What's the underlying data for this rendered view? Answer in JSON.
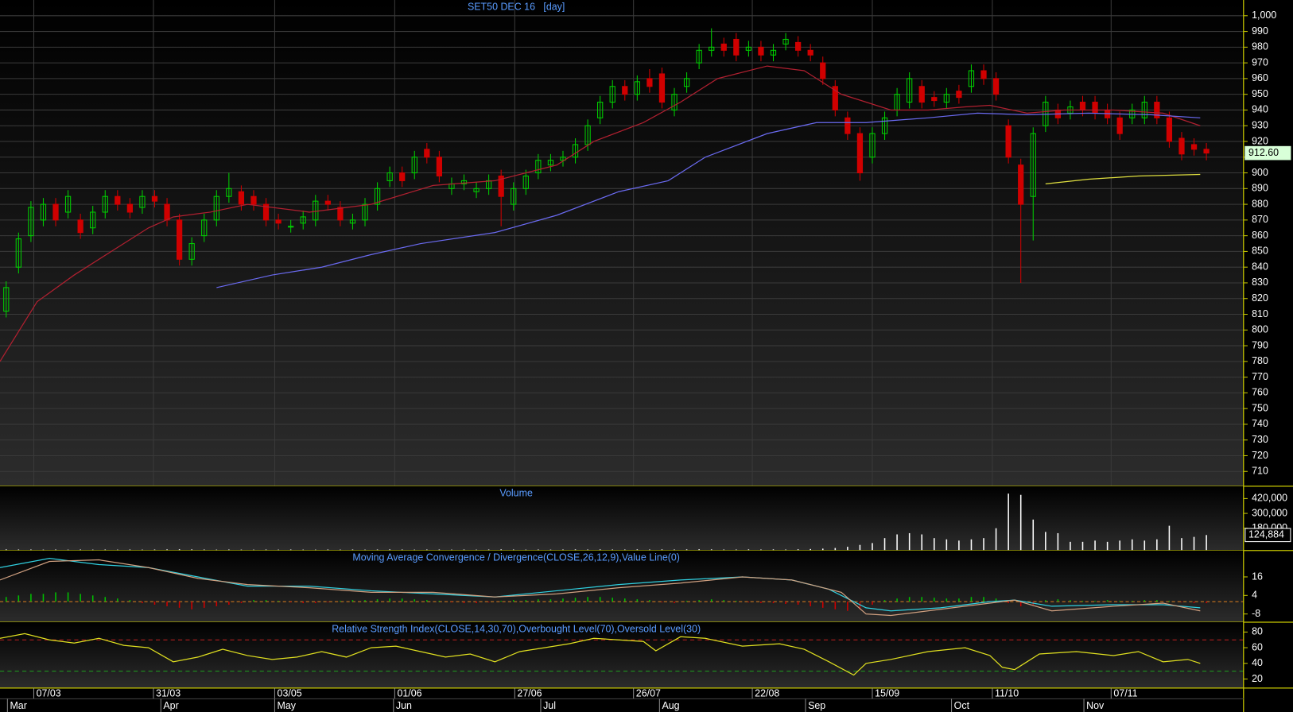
{
  "chart_data": [
    {
      "type": "candlestick",
      "title": "SET50 DEC 16   [day]",
      "open": [
        812,
        840,
        860,
        870,
        880,
        875,
        870,
        865,
        875,
        885,
        880,
        878,
        885,
        880,
        870,
        845,
        860,
        870,
        885,
        888,
        885,
        880,
        870,
        866,
        868,
        870,
        882,
        878,
        868,
        870,
        880,
        895,
        900,
        900,
        915,
        910,
        890,
        893,
        888,
        890,
        898,
        880,
        890,
        900,
        905,
        908,
        910,
        918,
        935,
        945,
        955,
        950,
        960,
        963,
        940,
        955,
        970,
        978,
        982,
        985,
        978,
        980,
        975,
        982,
        983,
        978,
        970,
        955,
        935,
        925,
        910,
        925,
        940,
        945,
        955,
        948,
        945,
        952,
        955,
        965,
        960,
        930,
        905,
        885,
        930,
        940,
        938,
        945,
        945,
        940,
        935,
        935,
        935,
        945,
        935,
        922,
        918,
        915
      ],
      "high": [
        831,
        862,
        882,
        884,
        884,
        889,
        874,
        879,
        889,
        889,
        884,
        889,
        889,
        884,
        874,
        859,
        874,
        889,
        900,
        892,
        889,
        884,
        874,
        870,
        876,
        886,
        886,
        882,
        874,
        884,
        894,
        904,
        904,
        914,
        919,
        914,
        897,
        899,
        894,
        899,
        902,
        894,
        902,
        912,
        912,
        914,
        922,
        934,
        949,
        959,
        959,
        962,
        966,
        967,
        954,
        964,
        982,
        992,
        986,
        989,
        984,
        984,
        982,
        989,
        987,
        982,
        974,
        959,
        939,
        929,
        929,
        939,
        954,
        964,
        959,
        952,
        954,
        956,
        969,
        969,
        964,
        934,
        909,
        929,
        949,
        944,
        946,
        949,
        949,
        944,
        939,
        944,
        949,
        949,
        939,
        926,
        922,
        919
      ],
      "low": [
        808,
        836,
        856,
        866,
        866,
        871,
        858,
        861,
        871,
        876,
        871,
        874,
        878,
        866,
        841,
        841,
        856,
        866,
        881,
        876,
        876,
        866,
        864,
        862,
        864,
        866,
        876,
        866,
        864,
        866,
        876,
        891,
        891,
        896,
        906,
        894,
        886,
        889,
        884,
        886,
        866,
        876,
        886,
        896,
        901,
        904,
        906,
        914,
        931,
        941,
        946,
        946,
        951,
        941,
        936,
        951,
        966,
        974,
        974,
        971,
        974,
        971,
        971,
        978,
        974,
        971,
        956,
        936,
        921,
        895,
        906,
        921,
        936,
        941,
        941,
        942,
        941,
        944,
        951,
        956,
        946,
        906,
        830,
        857,
        926,
        931,
        934,
        936,
        934,
        931,
        921,
        931,
        931,
        931,
        916,
        908,
        911,
        908
      ],
      "close": [
        827,
        858,
        878,
        880,
        870,
        885,
        862,
        875,
        885,
        880,
        875,
        885,
        882,
        870,
        845,
        855,
        870,
        885,
        890,
        880,
        880,
        870,
        868,
        866,
        872,
        882,
        880,
        870,
        870,
        880,
        890,
        900,
        895,
        910,
        910,
        898,
        893,
        895,
        890,
        895,
        885,
        890,
        898,
        908,
        908,
        910,
        918,
        930,
        945,
        955,
        950,
        958,
        955,
        945,
        950,
        960,
        978,
        980,
        978,
        975,
        980,
        975,
        978,
        985,
        978,
        975,
        960,
        940,
        925,
        900,
        925,
        935,
        950,
        960,
        945,
        946,
        950,
        948,
        965,
        960,
        950,
        910,
        880,
        925,
        945,
        935,
        942,
        940,
        938,
        935,
        925,
        940,
        945,
        935,
        920,
        912,
        915,
        912.6
      ],
      "up_color": "#00d000",
      "down_color": "#d00000",
      "lines": [
        {
          "color": "#b02030",
          "x": [
            0,
            3,
            6,
            9,
            12,
            14,
            17,
            20,
            25,
            30,
            35,
            40,
            45,
            48,
            52,
            55,
            58,
            62,
            65,
            68,
            70,
            72,
            75,
            78,
            80,
            83,
            86,
            90,
            94,
            97
          ],
          "values": [
            780,
            818,
            835,
            850,
            865,
            872,
            875,
            880,
            875,
            880,
            892,
            895,
            905,
            920,
            932,
            945,
            960,
            968,
            965,
            950,
            945,
            940,
            940,
            942,
            943,
            938,
            940,
            940,
            938,
            930
          ]
        },
        {
          "color": "#6a6af0",
          "x": [
            17.5,
            22,
            26,
            30,
            34,
            40,
            45,
            50,
            54,
            57,
            62,
            66,
            70,
            75,
            79,
            83,
            88,
            93,
            97
          ],
          "values": [
            827,
            835,
            840,
            848,
            855,
            862,
            873,
            888,
            895,
            910,
            925,
            932,
            932,
            935,
            938,
            937,
            938,
            937,
            935
          ]
        },
        {
          "color": "#e0e040",
          "x": [
            84.5,
            88,
            92,
            97
          ],
          "values": [
            893,
            896,
            898,
            899
          ]
        }
      ],
      "last_value": {
        "value": 912.6,
        "label": "912.60"
      },
      "xlim": [
        0,
        100.5
      ],
      "ylim": [
        700.6,
        1010
      ],
      "yticks": [
        {
          "value": 1000,
          "label": "1,000"
        },
        990,
        980,
        970,
        960,
        950,
        940,
        930,
        920,
        910,
        900,
        890,
        880,
        870,
        860,
        850,
        840,
        830,
        820,
        810,
        800,
        790,
        780,
        770,
        760,
        750,
        740,
        730,
        720,
        710
      ],
      "xticks": [
        {
          "value": 2.73,
          "label": "07/03"
        },
        {
          "value": 12.4,
          "label": "31/03"
        },
        {
          "value": 22.2,
          "label": "03/05"
        },
        {
          "value": 31.9,
          "label": "01/06"
        },
        {
          "value": 41.6,
          "label": "27/06"
        },
        {
          "value": 51.2,
          "label": "26/07"
        },
        {
          "value": 60.8,
          "label": "22/08"
        },
        {
          "value": 70.5,
          "label": "15/09"
        },
        {
          "value": 80.2,
          "label": "11/10"
        },
        {
          "value": 89.8,
          "label": "07/11"
        }
      ],
      "xticks2": [
        {
          "value": 0.6,
          "label": "Mar"
        },
        {
          "value": 13,
          "label": "Apr"
        },
        {
          "value": 22.2,
          "label": "May"
        },
        {
          "value": 31.8,
          "label": "Jun"
        },
        {
          "value": 43.7,
          "label": "Jul"
        },
        {
          "value": 53.3,
          "label": "Aug"
        },
        {
          "value": 65.1,
          "label": "Sep"
        },
        {
          "value": 76.9,
          "label": "Oct"
        },
        {
          "value": 87.6,
          "label": "Nov"
        }
      ],
      "grid": true
    },
    {
      "type": "bar",
      "title": "Volume",
      "color": "#ffffff",
      "values": [
        9000,
        8000,
        8000,
        7000,
        8000,
        7000,
        8000,
        7000,
        8000,
        7000,
        8000,
        7000,
        8000,
        9000,
        10000,
        9000,
        8000,
        7000,
        8000,
        7000,
        7000,
        8000,
        7000,
        8000,
        7000,
        7000,
        8000,
        7000,
        8000,
        7000,
        8000,
        9000,
        8000,
        7000,
        8000,
        8000,
        7000,
        8000,
        7000,
        8000,
        9000,
        8000,
        7000,
        8000,
        7000,
        8000,
        9000,
        8000,
        9000,
        8000,
        8000,
        9000,
        8000,
        9000,
        8000,
        9000,
        10000,
        9000,
        8000,
        8000,
        9000,
        8000,
        9000,
        8000,
        10000,
        12000,
        15000,
        20000,
        30000,
        45000,
        60000,
        100000,
        130000,
        140000,
        130000,
        100000,
        90000,
        80000,
        90000,
        100000,
        180000,
        460000,
        450000,
        250000,
        150000,
        140000,
        70000,
        70000,
        80000,
        70000,
        80000,
        90000,
        80000,
        90000,
        200000,
        100000,
        110000,
        124884
      ],
      "last_value": {
        "value": 124884,
        "label": "124,884"
      },
      "ylim": [
        0,
        520000
      ],
      "yticks": [
        {
          "value": 420000,
          "label": "420,000"
        },
        {
          "value": 300000,
          "label": "300,000"
        },
        {
          "value": 180000,
          "label": "180,000"
        }
      ]
    },
    {
      "type": "macd",
      "title": "Moving Average Convergence / Divergence(CLOSE,26,12,9),Value Line(0)",
      "histogram": [
        3,
        4,
        5,
        5,
        6,
        6,
        5,
        4,
        3,
        2,
        1,
        -1,
        -2,
        -3,
        -4,
        -5,
        -4,
        -3,
        -2,
        -1,
        1,
        1,
        0.5,
        -0.5,
        -1,
        -1,
        -0.5,
        0.5,
        1,
        1,
        1.5,
        2,
        2,
        1.5,
        1,
        0.5,
        -0.5,
        -1,
        -1,
        -0.5,
        0.5,
        1,
        1,
        1.5,
        1.5,
        2,
        2.5,
        3,
        3,
        2.5,
        2,
        1.5,
        1,
        -0.5,
        -1,
        0.5,
        1,
        1.5,
        1,
        0.5,
        -0.5,
        -1,
        -1,
        -1.5,
        -2,
        -3,
        -4,
        -5,
        -6,
        -5,
        -2,
        1,
        2,
        3,
        3,
        2.5,
        2,
        2,
        3,
        3,
        2,
        -1,
        -3,
        -2,
        1,
        1.5,
        1,
        0.5,
        0.5,
        1,
        0.5,
        0.5,
        1,
        1,
        0.5,
        -0.5,
        -1,
        -1
      ],
      "up_color": "#00c000",
      "down_color": "#d00000",
      "lines": [
        {
          "color": "#30d0e0",
          "x": [
            0,
            4,
            8,
            12,
            16,
            20,
            25,
            30,
            35,
            40,
            45,
            50,
            55,
            60,
            64,
            67,
            70,
            72,
            76,
            80,
            82,
            85,
            90,
            94,
            97
          ],
          "values": [
            22,
            28,
            24,
            22,
            16,
            10,
            10,
            7,
            5,
            3,
            7,
            11,
            14,
            16,
            14,
            8,
            -4,
            -6,
            -4,
            0,
            1,
            -3,
            -2,
            -2,
            -4
          ]
        },
        {
          "color": "#d0a080",
          "x": [
            0,
            4,
            8,
            12,
            16,
            20,
            25,
            30,
            35,
            40,
            45,
            50,
            55,
            60,
            64,
            68,
            70,
            72,
            76,
            80,
            82,
            85,
            90,
            94,
            97
          ],
          "values": [
            14,
            26,
            27,
            22,
            15,
            11,
            9,
            6,
            6,
            3,
            5,
            9,
            12,
            16,
            14,
            6,
            -8,
            -9,
            -5,
            -1,
            1,
            -6,
            -3,
            -1,
            -6
          ]
        }
      ],
      "zero_line": 0,
      "zero_color": "#e08020",
      "ylim": [
        -13.3,
        33.1
      ],
      "yticks": [
        16,
        4,
        -8
      ]
    },
    {
      "type": "line",
      "title": "Relative Strength Index(CLOSE,14,30,70),Overbought Level(70),Oversold Level(30)",
      "lines": [
        {
          "color": "#e0e020",
          "x": [
            0,
            2,
            4,
            6,
            8,
            10,
            12,
            14,
            16,
            18,
            20,
            22,
            24,
            26,
            28,
            30,
            32,
            34,
            36,
            38,
            40,
            42,
            44,
            46,
            48,
            50,
            52,
            53,
            55,
            57,
            60,
            63,
            65,
            67,
            69,
            70,
            72,
            75,
            78,
            80,
            81,
            82,
            84,
            87,
            90,
            92,
            94,
            96,
            97
          ],
          "values": [
            72,
            78,
            70,
            66,
            72,
            63,
            60,
            42,
            48,
            58,
            50,
            45,
            48,
            55,
            48,
            60,
            62,
            55,
            48,
            52,
            42,
            55,
            60,
            65,
            72,
            70,
            68,
            56,
            74,
            72,
            62,
            65,
            58,
            42,
            25,
            40,
            45,
            55,
            60,
            50,
            35,
            32,
            52,
            55,
            50,
            55,
            42,
            45,
            40
          ]
        }
      ],
      "levels": [
        {
          "value": 70,
          "color": "#c02020"
        },
        {
          "value": 30,
          "color": "#20a020"
        }
      ],
      "ylim": [
        8.4,
        92.6
      ],
      "yticks": [
        80,
        60,
        40,
        20
      ]
    }
  ]
}
